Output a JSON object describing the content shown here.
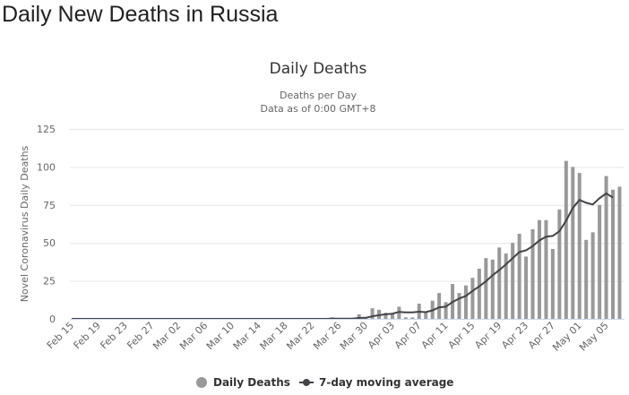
{
  "page_title": "Daily New Deaths in Russia",
  "chart_data": {
    "type": "bar",
    "title": "Daily Deaths",
    "subtitle_lines": [
      "Deaths per Day",
      "Data as of 0:00 GMT+8"
    ],
    "ylabel": "Novel Coronavirus Daily Deaths",
    "xlabel": "",
    "ylim": [
      0,
      125
    ],
    "yticks": [
      0,
      25,
      50,
      75,
      100,
      125
    ],
    "grid": true,
    "legend_position": "bottom",
    "start_date": "2020-02-15",
    "xtick_labels": [
      "Feb 15",
      "Feb 19",
      "Feb 23",
      "Feb 27",
      "Mar 02",
      "Mar 06",
      "Mar 10",
      "Mar 14",
      "Mar 18",
      "Mar 22",
      "Mar 26",
      "Mar 30",
      "Apr 03",
      "Apr 07",
      "Apr 11",
      "Apr 15",
      "Apr 19",
      "Apr 23",
      "Apr 27",
      "May 01",
      "May 05"
    ],
    "colors": {
      "bars": "#999999",
      "line": "#434348",
      "grid": "#e6e6e6",
      "axis_labels": "#666666"
    },
    "series": [
      {
        "name": "Daily Deaths",
        "type": "bar",
        "values": [
          0,
          0,
          0,
          0,
          0,
          0,
          0,
          0,
          0,
          0,
          0,
          0,
          0,
          0,
          0,
          0,
          0,
          0,
          0,
          0,
          0,
          0,
          0,
          0,
          0,
          0,
          0,
          0,
          0,
          0,
          0,
          0,
          0,
          0,
          0,
          0,
          0,
          0,
          0,
          1,
          0,
          0,
          0,
          3,
          1,
          7,
          6,
          4,
          3,
          8,
          1,
          1,
          10,
          4,
          12,
          17,
          11,
          23,
          17,
          22,
          27,
          33,
          40,
          39,
          47,
          43,
          50,
          56,
          41,
          59,
          65,
          65,
          46,
          72,
          104,
          100,
          96,
          52,
          57,
          75,
          94,
          85,
          87
        ]
      },
      {
        "name": "7-day moving average",
        "type": "line",
        "values": [
          0,
          0,
          0,
          0,
          0,
          0,
          0,
          0,
          0,
          0,
          0,
          0,
          0,
          0,
          0,
          0,
          0,
          0,
          0,
          0,
          0,
          0,
          0,
          0,
          0,
          0,
          0,
          0,
          0,
          0,
          0,
          0,
          0,
          0,
          0,
          0,
          0,
          0,
          0,
          0.1,
          0.1,
          0.1,
          0.1,
          0.6,
          0.7,
          1.7,
          2.4,
          3.0,
          3.4,
          4.6,
          4.3,
          4.3,
          4.7,
          4.4,
          5.6,
          7.6,
          8.0,
          11.1,
          13.4,
          15.1,
          18.4,
          21.4,
          24.7,
          28.7,
          32.1,
          35.9,
          39.9,
          44.0,
          45.1,
          47.9,
          51.6,
          54.1,
          54.6,
          57.7,
          64.6,
          73.0,
          78.3,
          76.4,
          75.3,
          79.4,
          82.6,
          79.9,
          null
        ]
      }
    ]
  }
}
